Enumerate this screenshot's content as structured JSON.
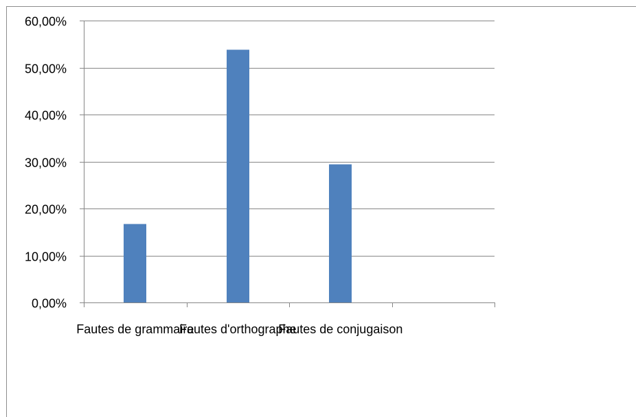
{
  "chart_data": {
    "type": "bar",
    "categories": [
      "Fautes de grammaire",
      "Fautes d'orthographe",
      "Fautes de conjugaison",
      ""
    ],
    "values": [
      16.7,
      53.8,
      29.4,
      null
    ],
    "value_format": "percent_2dp_comma",
    "ylim": [
      0,
      60
    ],
    "ytick_labels": [
      "0,00%",
      "10,00%",
      "20,00%",
      "30,00%",
      "40,00%",
      "50,00%",
      "60,00%"
    ],
    "title": "",
    "xlabel": "",
    "ylabel": "",
    "grid": true,
    "legend": "none",
    "colors": {
      "bar": "#4f81bd",
      "grid": "#868686",
      "axis": "#868686",
      "frame": "#8c8c8c",
      "text": "#000000"
    }
  }
}
